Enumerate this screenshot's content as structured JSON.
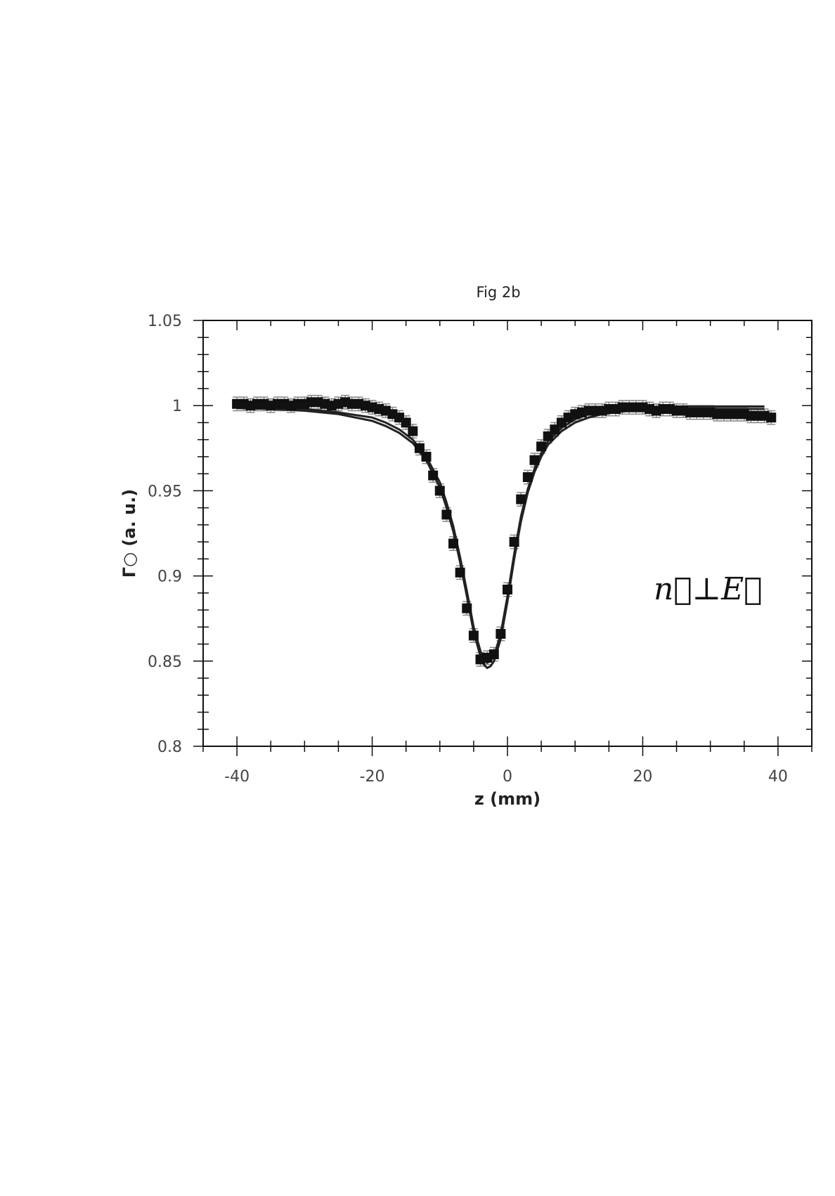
{
  "chart_data": {
    "type": "scatter",
    "title": "Fig 2b",
    "xlabel": "z (mm)",
    "ylabel": "Γ○ (a. u.)",
    "xlim": [
      -45,
      45
    ],
    "ylim": [
      0.8,
      1.05
    ],
    "xticks": [
      -40,
      -20,
      0,
      20,
      40
    ],
    "xtick_labels": [
      "-40",
      "-20",
      "0",
      "20",
      "40"
    ],
    "yticks": [
      0.8,
      0.85,
      0.9,
      0.95,
      1,
      1.05
    ],
    "ytick_labels": [
      "0.8",
      "0.85",
      "0.9",
      "0.95",
      "1",
      "1.05"
    ],
    "grid": false,
    "annotation": "n⃗⊥E⃗",
    "marker_color": "#111111",
    "line_color": "#222222",
    "errorbar_color": "#888888",
    "series": [
      {
        "kind": "points",
        "x": [
          -40,
          -39,
          -38,
          -37,
          -36,
          -35,
          -34,
          -33,
          -32,
          -31,
          -30,
          -29,
          -28,
          -27,
          -26,
          -25,
          -24,
          -23,
          -22,
          -21,
          -20,
          -19,
          -18,
          -17,
          -16,
          -15,
          -14,
          -13,
          -12,
          -11,
          -10,
          -9,
          -8,
          -7,
          -6,
          -5,
          -4,
          -3,
          -2,
          -1,
          0,
          1,
          2,
          3,
          4,
          5,
          6,
          7,
          8,
          9,
          10,
          11,
          12,
          13,
          14,
          15,
          16,
          17,
          18,
          19,
          20,
          21,
          22,
          23,
          24,
          25,
          26,
          27,
          28,
          29,
          30,
          31,
          32,
          33,
          34,
          35,
          36,
          37,
          38,
          39
        ],
        "y": [
          1.001,
          1.001,
          1.0,
          1.001,
          1.001,
          1.0,
          1.001,
          1.001,
          1.0,
          1.001,
          1.001,
          1.002,
          1.002,
          1.001,
          1.0,
          1.001,
          1.002,
          1.001,
          1.001,
          1.0,
          0.999,
          0.998,
          0.997,
          0.995,
          0.993,
          0.99,
          0.985,
          0.975,
          0.97,
          0.959,
          0.95,
          0.936,
          0.919,
          0.902,
          0.881,
          0.865,
          0.851,
          0.852,
          0.854,
          0.866,
          0.892,
          0.92,
          0.945,
          0.958,
          0.968,
          0.976,
          0.982,
          0.986,
          0.99,
          0.993,
          0.995,
          0.996,
          0.997,
          0.997,
          0.997,
          0.998,
          0.998,
          0.999,
          0.999,
          0.999,
          0.999,
          0.998,
          0.997,
          0.998,
          0.998,
          0.997,
          0.997,
          0.996,
          0.996,
          0.996,
          0.996,
          0.995,
          0.995,
          0.995,
          0.995,
          0.995,
          0.994,
          0.994,
          0.994,
          0.993
        ],
        "error": 0.004
      },
      {
        "kind": "line",
        "x": [
          -40,
          -35,
          -30,
          -25,
          -20,
          -18,
          -16,
          -14,
          -12,
          -10,
          -9,
          -8,
          -7,
          -6,
          -5,
          -4,
          -3.5,
          -3,
          -2.5,
          -2,
          -1,
          0,
          1,
          2,
          3,
          4,
          5,
          6,
          8,
          10,
          12,
          14,
          16,
          18,
          20,
          25,
          30,
          35,
          38
        ],
        "y": [
          0.9995,
          0.999,
          0.998,
          0.996,
          0.993,
          0.99,
          0.986,
          0.98,
          0.97,
          0.955,
          0.943,
          0.929,
          0.911,
          0.891,
          0.87,
          0.856,
          0.851,
          0.849,
          0.85,
          0.853,
          0.866,
          0.888,
          0.913,
          0.935,
          0.951,
          0.963,
          0.972,
          0.979,
          0.987,
          0.992,
          0.995,
          0.997,
          0.998,
          0.999,
          0.999,
          0.9995,
          0.9995,
          0.9995,
          0.9995
        ]
      },
      {
        "kind": "line",
        "x": [
          -40,
          -35,
          -30,
          -25,
          -20,
          -18,
          -16,
          -14,
          -12,
          -10,
          -9,
          -8,
          -7,
          -6,
          -5,
          -4,
          -3.5,
          -3,
          -2.5,
          -2,
          -1,
          0,
          1,
          2,
          3,
          4,
          5,
          6,
          8,
          10,
          12,
          14,
          16,
          18,
          20,
          25,
          30,
          35,
          38
        ],
        "y": [
          0.9985,
          0.998,
          0.997,
          0.995,
          0.991,
          0.988,
          0.984,
          0.978,
          0.968,
          0.952,
          0.94,
          0.926,
          0.908,
          0.888,
          0.867,
          0.853,
          0.848,
          0.846,
          0.847,
          0.85,
          0.863,
          0.885,
          0.91,
          0.932,
          0.949,
          0.961,
          0.97,
          0.977,
          0.985,
          0.99,
          0.993,
          0.995,
          0.996,
          0.997,
          0.998,
          0.998,
          0.998,
          0.998,
          0.998
        ]
      }
    ]
  }
}
